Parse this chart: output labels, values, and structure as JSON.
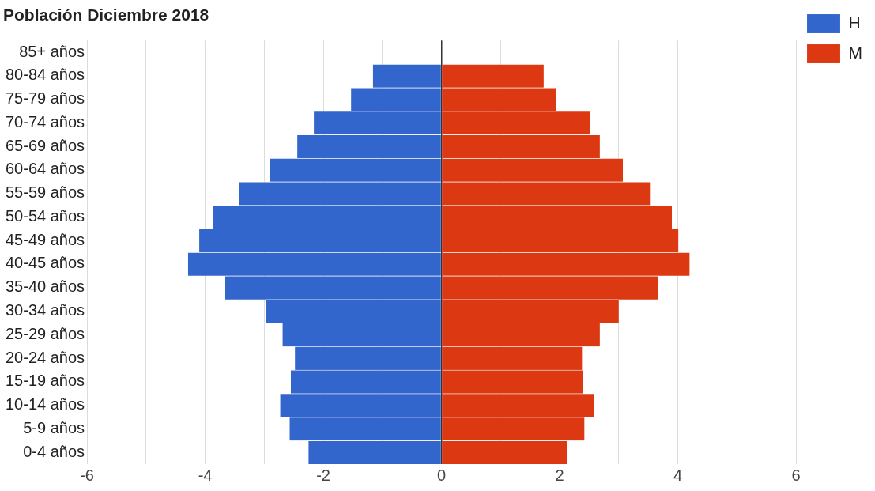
{
  "chart_data": {
    "type": "bar",
    "title": "Población Diciembre 2018",
    "orientation": "horizontal",
    "stacked": true,
    "categories": [
      "85+ años",
      "80-84 años",
      "75-79 años",
      "70-74 años",
      "65-69 años",
      "60-64 años",
      "55-59 años",
      "50-54 años",
      "45-49 años",
      "40-45 años",
      "35-40 años",
      "30-34 años",
      "25-29 años",
      "20-24 años",
      "15-19 años",
      "10-14 años",
      "5-9 años",
      "0-4 años"
    ],
    "series": [
      {
        "name": "H",
        "color": "#3366cc",
        "values": [
          null,
          -1.16,
          -1.53,
          -2.16,
          -2.44,
          -2.9,
          -3.43,
          -3.87,
          -4.1,
          -4.29,
          -3.66,
          -2.97,
          -2.69,
          -2.48,
          -2.55,
          -2.73,
          -2.57,
          -2.25
        ]
      },
      {
        "name": "M",
        "color": "#dc3912",
        "values": [
          null,
          1.73,
          1.94,
          2.52,
          2.68,
          3.07,
          3.53,
          3.9,
          4.01,
          4.2,
          3.67,
          3.0,
          2.68,
          2.38,
          2.4,
          2.58,
          2.42,
          2.12
        ]
      }
    ],
    "xlim": [
      -6,
      6
    ],
    "xticks": [
      -6,
      {
        "value": -5,
        "label": null
      },
      -4,
      {
        "value": -3,
        "label": null
      },
      -2,
      {
        "value": -1,
        "label": null
      },
      0,
      {
        "value": 1,
        "label": null
      },
      2,
      {
        "value": 3,
        "label": null
      },
      4,
      {
        "value": 5,
        "label": null
      },
      6
    ],
    "grid": "x",
    "legend": "top right"
  }
}
